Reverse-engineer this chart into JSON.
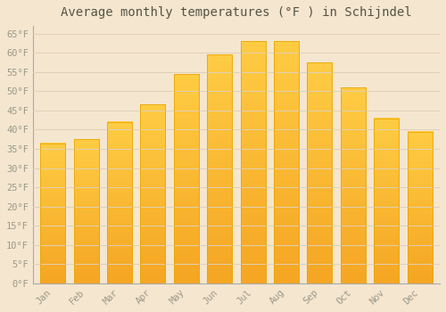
{
  "title": "Average monthly temperatures (°F ) in Schijndel",
  "months": [
    "Jan",
    "Feb",
    "Mar",
    "Apr",
    "May",
    "Jun",
    "Jul",
    "Aug",
    "Sep",
    "Oct",
    "Nov",
    "Dec"
  ],
  "values": [
    36.5,
    37.5,
    42.0,
    46.5,
    54.5,
    59.5,
    63.0,
    63.0,
    57.5,
    51.0,
    43.0,
    39.5
  ],
  "bar_color_top": "#FFCC44",
  "bar_color_bottom": "#F5A623",
  "bar_edge_color": "#E8A800",
  "background_color": "#F5E6D0",
  "plot_bg_color": "#F5E6D0",
  "grid_color": "#E0D0B8",
  "ylim": [
    0,
    67
  ],
  "yticks": [
    0,
    5,
    10,
    15,
    20,
    25,
    30,
    35,
    40,
    45,
    50,
    55,
    60,
    65
  ],
  "tick_label_color": "#999988",
  "title_color": "#555544",
  "title_fontsize": 10,
  "tick_fontsize": 7.5,
  "bar_width": 0.75
}
